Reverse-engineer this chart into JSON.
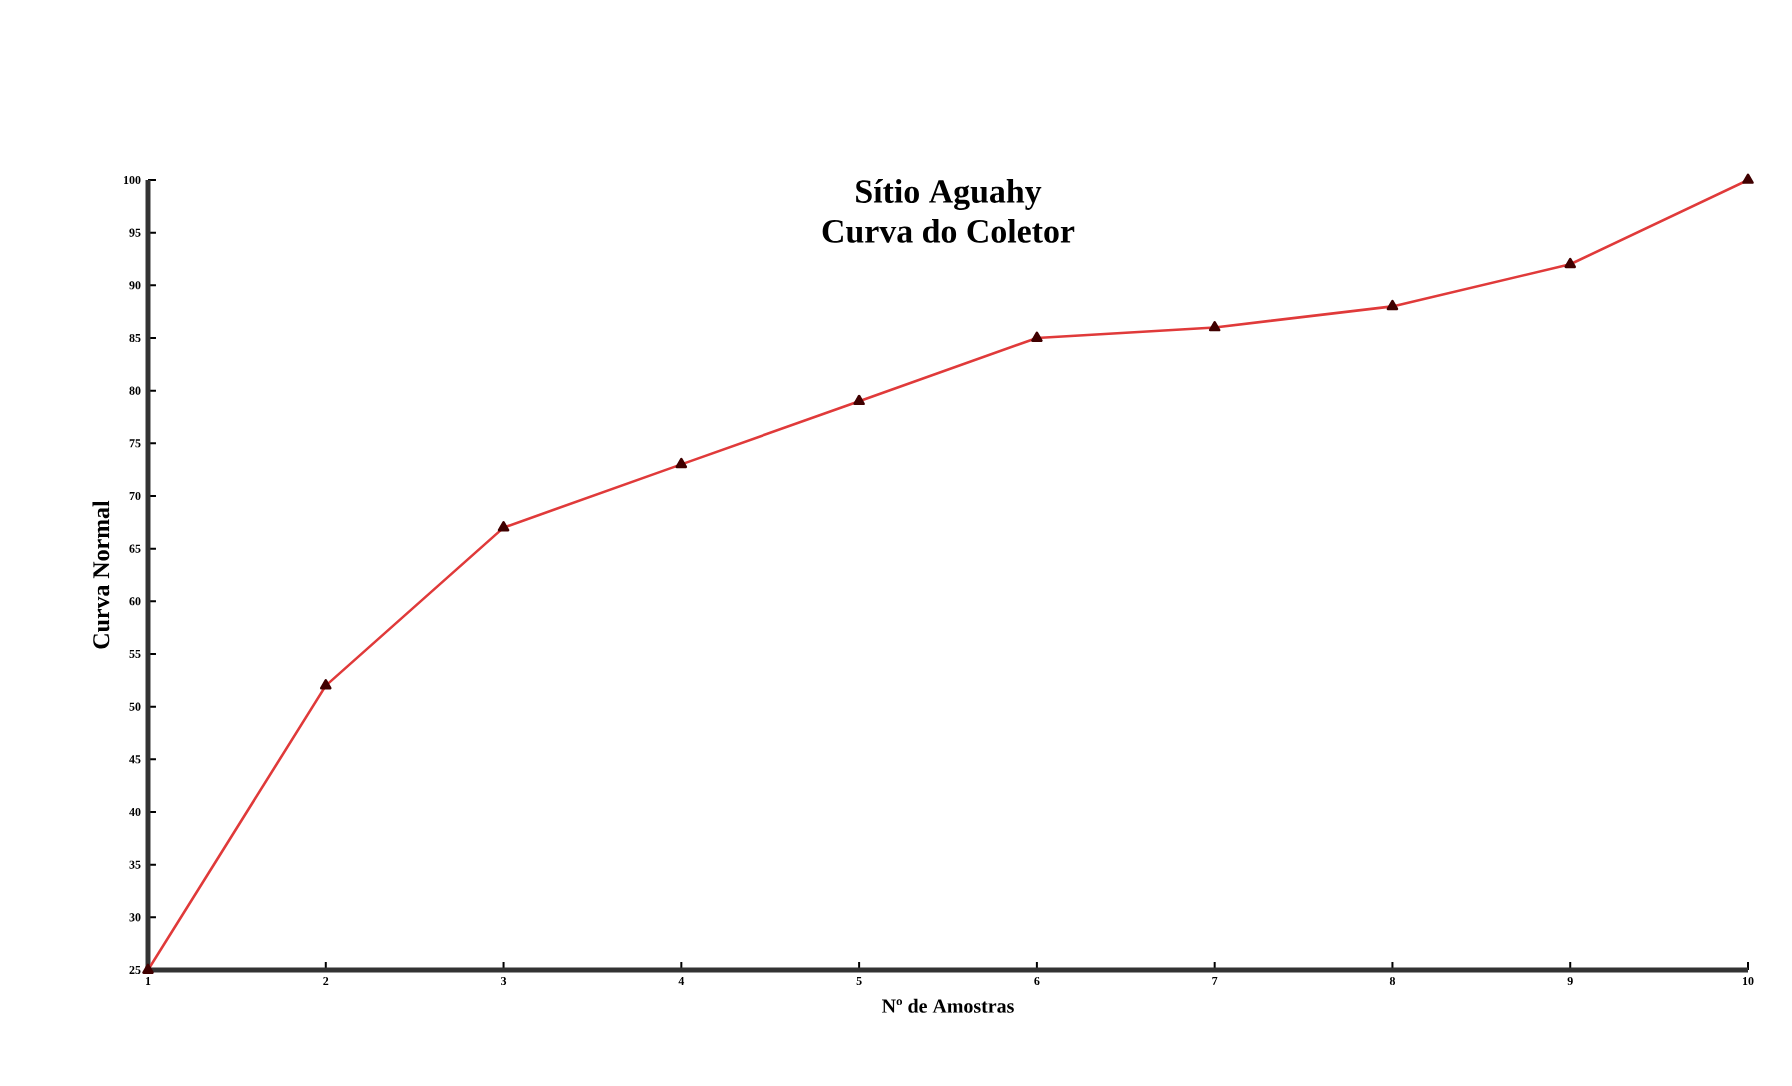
{
  "chart_data": {
    "type": "line",
    "title": "Sítio Aguahy",
    "subtitle": "Curva do Coletor",
    "xlabel": "Nº de Amostras",
    "ylabel": "Curva Normal",
    "x": [
      1,
      2,
      3,
      4,
      5,
      6,
      7,
      8,
      9,
      10
    ],
    "series": [
      {
        "color": "#e03a3a",
        "values": [
          25,
          52,
          67,
          73,
          79,
          85,
          86,
          88,
          92,
          100
        ]
      }
    ],
    "marker": "triangle",
    "line_style": "solid",
    "grid": false,
    "xlim": [
      1,
      10
    ],
    "xticks": [
      1,
      2,
      3,
      4,
      5,
      6,
      7,
      8,
      9,
      10
    ],
    "ylim": [
      25,
      100
    ],
    "yticks": [
      25,
      30,
      35,
      40,
      45,
      50,
      55,
      60,
      65,
      70,
      75,
      80,
      85,
      90,
      95,
      100
    ]
  }
}
